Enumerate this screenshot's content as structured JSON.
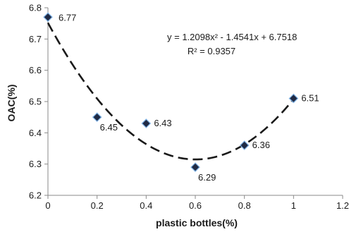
{
  "chart_data": {
    "type": "scatter",
    "xlabel": "plastic bottles(%)",
    "ylabel": "OAC(%)",
    "xlim": [
      0,
      1.2
    ],
    "ylim": [
      6.2,
      6.8
    ],
    "x_ticks": [
      "0",
      "0.2",
      "0.4",
      "0.6",
      "0.8",
      "1",
      "1.2"
    ],
    "y_ticks": [
      "6.2",
      "6.3",
      "6.4",
      "6.5",
      "6.6",
      "6.7",
      "6.8"
    ],
    "grid": false,
    "marker": "diamond",
    "marker_color": "#1f2a44",
    "series": [
      {
        "x": [
          0,
          0.2,
          0.4,
          0.6,
          0.8,
          1.0
        ],
        "y": [
          6.77,
          6.45,
          6.43,
          6.29,
          6.36,
          6.51
        ],
        "labels": [
          "6.77",
          "6.45",
          "6.43",
          "6.29",
          "6.36",
          "6.51"
        ]
      }
    ],
    "trendline": {
      "type": "polynomial",
      "order": 2,
      "style": "dashed",
      "coefficients": [
        1.2098,
        -1.4541,
        6.7518
      ],
      "equation_text": "y = 1.2098x² - 1.4541x + 6.7518",
      "r2_text": "R² = 0.9357"
    }
  }
}
